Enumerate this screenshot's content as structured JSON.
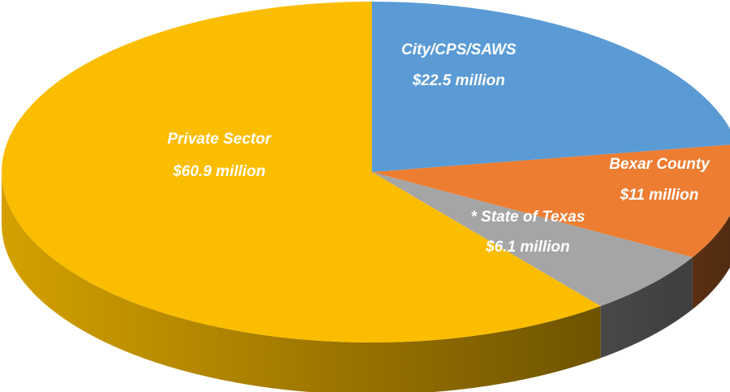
{
  "chart_data": {
    "type": "pie",
    "categories": [
      "City/CPS/SAWS",
      "Bexar County",
      "* State of Texas",
      "Private Sector"
    ],
    "values": [
      22.5,
      11,
      6.1,
      60.9
    ],
    "value_labels": [
      "$22.5 million",
      "$11 million",
      "$6.1 million",
      "$60.9 million"
    ],
    "colors": [
      "#5b9bd5",
      "#ed7d31",
      "#a5a5a5",
      "#fbbd00"
    ]
  }
}
